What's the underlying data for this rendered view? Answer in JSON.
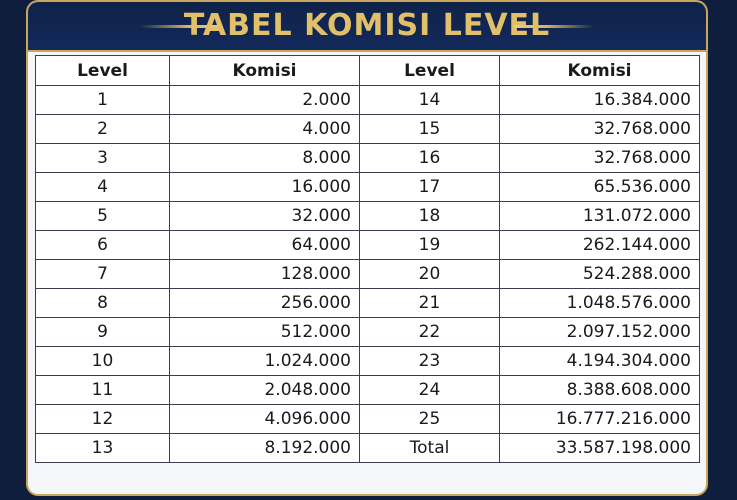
{
  "title": "TABEL KOMISI LEVEL",
  "headers": {
    "level_left": "Level",
    "komisi_left": "Komisi",
    "level_right": "Level",
    "komisi_right": "Komisi"
  },
  "rows": [
    {
      "left_level": "1",
      "left_komisi": "2.000",
      "right_level": "14",
      "right_komisi": "16.384.000"
    },
    {
      "left_level": "2",
      "left_komisi": "4.000",
      "right_level": "15",
      "right_komisi": "32.768.000"
    },
    {
      "left_level": "3",
      "left_komisi": "8.000",
      "right_level": "16",
      "right_komisi": "32.768.000"
    },
    {
      "left_level": "4",
      "left_komisi": "16.000",
      "right_level": "17",
      "right_komisi": "65.536.000"
    },
    {
      "left_level": "5",
      "left_komisi": "32.000",
      "right_level": "18",
      "right_komisi": "131.072.000"
    },
    {
      "left_level": "6",
      "left_komisi": "64.000",
      "right_level": "19",
      "right_komisi": "262.144.000"
    },
    {
      "left_level": "7",
      "left_komisi": "128.000",
      "right_level": "20",
      "right_komisi": "524.288.000"
    },
    {
      "left_level": "8",
      "left_komisi": "256.000",
      "right_level": "21",
      "right_komisi": "1.048.576.000"
    },
    {
      "left_level": "9",
      "left_komisi": "512.000",
      "right_level": "22",
      "right_komisi": "2.097.152.000"
    },
    {
      "left_level": "10",
      "left_komisi": "1.024.000",
      "right_level": "23",
      "right_komisi": "4.194.304.000"
    },
    {
      "left_level": "11",
      "left_komisi": "2.048.000",
      "right_level": "24",
      "right_komisi": "8.388.608.000"
    },
    {
      "left_level": "12",
      "left_komisi": "4.096.000",
      "right_level": "25",
      "right_komisi": "16.777.216.000"
    },
    {
      "left_level": "13",
      "left_komisi": "8.192.000",
      "right_level": "Total",
      "right_komisi": "33.587.198.000"
    }
  ],
  "colors": {
    "background": "#0f1e3c",
    "title_gold": "#e2c069",
    "panel": "#f4f6fa",
    "grid_line": "#3a3f4d"
  }
}
